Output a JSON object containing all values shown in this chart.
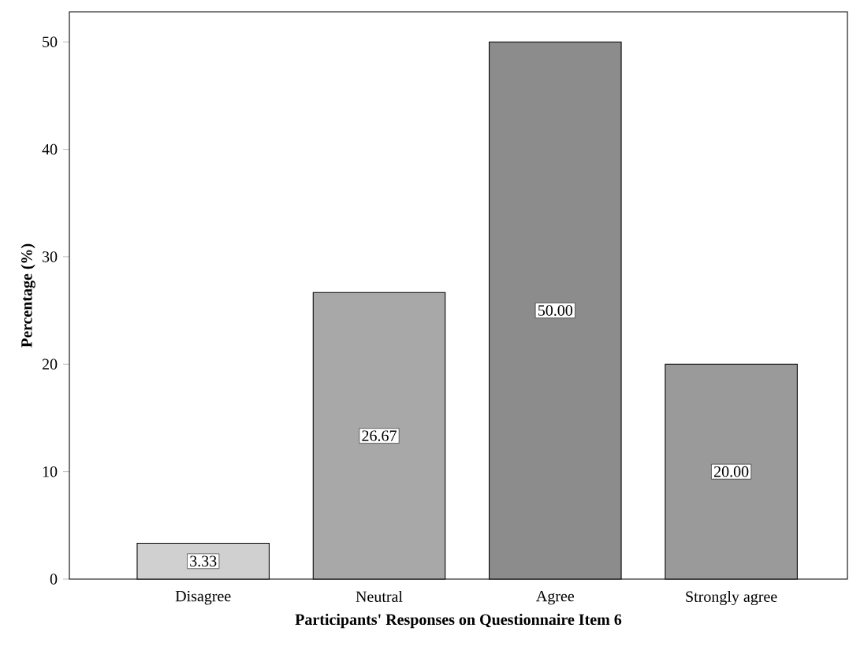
{
  "chart_data": {
    "type": "bar",
    "xlabel": "Participants' Responses on Questionnaire Item 6",
    "ylabel": "Percentage (%)",
    "categories": [
      "Disagree",
      "Neutral",
      "Agree",
      "Strongly agree"
    ],
    "values": [
      3.33,
      26.67,
      50.0,
      20.0
    ],
    "value_labels": [
      "3.33",
      "26.67",
      "50.00",
      "20.00"
    ],
    "colors": [
      "#d0d0d0",
      "#a8a8a8",
      "#8c8c8c",
      "#9a9a9a"
    ],
    "ylim": [
      0,
      52.8
    ],
    "yticks": [
      0,
      10,
      20,
      30,
      40,
      50
    ],
    "grid": false
  }
}
